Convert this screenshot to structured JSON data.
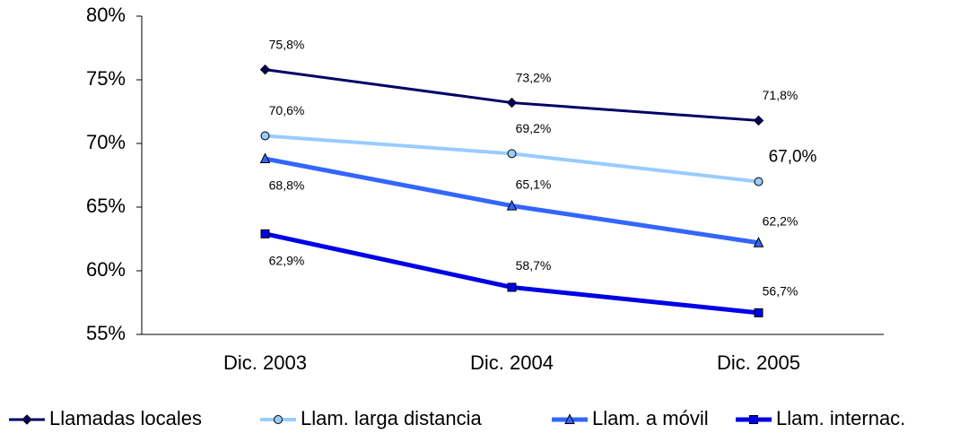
{
  "chart_data": {
    "type": "line",
    "categories": [
      "Dic. 2003",
      "Dic. 2004",
      "Dic. 2005"
    ],
    "series": [
      {
        "name": "Llamadas locales",
        "color": "#000066",
        "marker": "diamond",
        "values": [
          75.8,
          73.2,
          71.8
        ],
        "value_labels": [
          "75,8%",
          "73,2%",
          "71,8%"
        ]
      },
      {
        "name": "Llam. larga distancia",
        "color": "#99ccff",
        "marker": "circle",
        "values": [
          70.6,
          69.2,
          67.0
        ],
        "value_labels": [
          "70,6%",
          "69,2%",
          "67,0%"
        ]
      },
      {
        "name": "Llam. a móvil",
        "color": "#3366ff",
        "marker": "triangle",
        "values": [
          68.8,
          65.1,
          62.2
        ],
        "value_labels": [
          "68,8%",
          "65,1%",
          "62,2%"
        ]
      },
      {
        "name": "Llam. internac.",
        "color": "#0000e6",
        "marker": "square",
        "values": [
          62.9,
          58.7,
          56.7
        ],
        "value_labels": [
          "62,9%",
          "58,7%",
          "56,7%"
        ]
      }
    ],
    "ylim": [
      55,
      80
    ],
    "yticks": [
      {
        "value": 55,
        "label": "55%"
      },
      {
        "value": 60,
        "label": "60%"
      },
      {
        "value": 65,
        "label": "65%"
      },
      {
        "value": 70,
        "label": "70%"
      },
      {
        "value": 75,
        "label": "75%"
      },
      {
        "value": 80,
        "label": "80%"
      }
    ],
    "legend": "bottom"
  }
}
